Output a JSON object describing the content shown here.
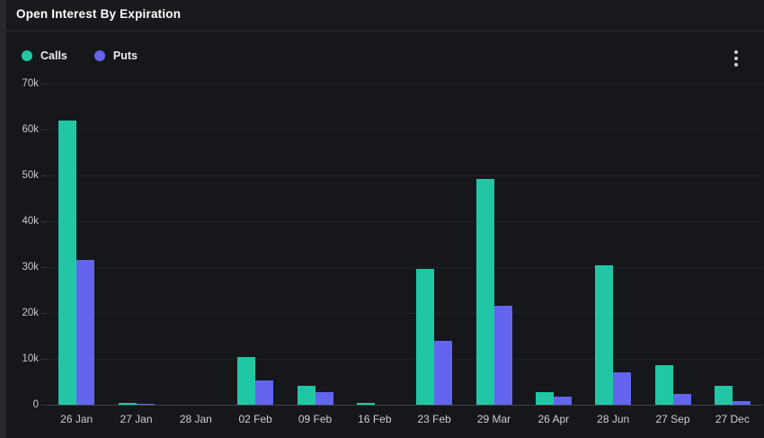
{
  "window": {
    "title": "Open Interest By Expiration"
  },
  "panel": {
    "kebab_icon": "vertical-ellipsis"
  },
  "chart_data": {
    "type": "bar",
    "title": "Open Interest By Expiration",
    "categories": [
      "26 Jan",
      "27 Jan",
      "28 Jan",
      "02 Feb",
      "09 Feb",
      "16 Feb",
      "23 Feb",
      "29 Mar",
      "26 Apr",
      "28 Jun",
      "27 Sep",
      "27 Dec"
    ],
    "series": [
      {
        "name": "Calls",
        "color": "#21c7a5",
        "values": [
          62000,
          400,
          0,
          10400,
          4100,
          400,
          29700,
          49300,
          2800,
          30300,
          8600,
          4200
        ]
      },
      {
        "name": "Puts",
        "color": "#6365ef",
        "values": [
          31500,
          250,
          0,
          5300,
          2700,
          0,
          13900,
          21500,
          1800,
          7100,
          2300,
          800
        ]
      }
    ],
    "xlabel": "",
    "ylabel": "",
    "ylim": [
      0,
      70000
    ],
    "yticks": [
      {
        "value": 0,
        "label": "0"
      },
      {
        "value": 10000,
        "label": "10k"
      },
      {
        "value": 20000,
        "label": "20k"
      },
      {
        "value": 30000,
        "label": "30k"
      },
      {
        "value": 40000,
        "label": "40k"
      },
      {
        "value": 50000,
        "label": "50k"
      },
      {
        "value": 60000,
        "label": "60k"
      },
      {
        "value": 70000,
        "label": "70k"
      }
    ],
    "grid": "horizontal",
    "legend_position": "top-left",
    "colors": {
      "background": "#15171a",
      "header_background": "#17191d",
      "gridline": "#1f2227",
      "axis_line": "#42454b",
      "tick_text": "#c9cacc"
    }
  }
}
